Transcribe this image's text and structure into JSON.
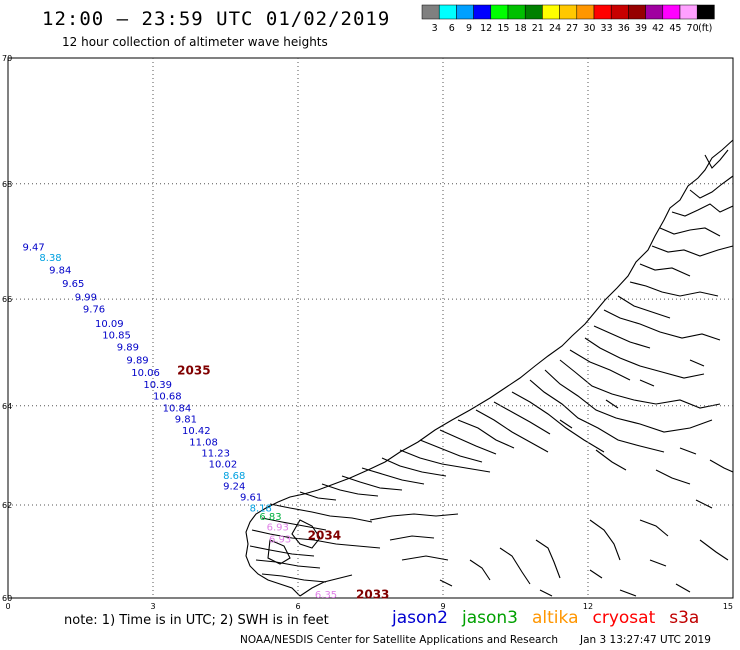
{
  "header": {
    "title": "12:00 – 23:59 UTC 01/02/2019",
    "subtitle": "12 hour collection of altimeter wave heights"
  },
  "legend": {
    "unit_label": "(ft)",
    "bins": [
      {
        "label": "3",
        "color": "#808080"
      },
      {
        "label": "6",
        "color": "#00ffff"
      },
      {
        "label": "9",
        "color": "#00a0ff"
      },
      {
        "label": "12",
        "color": "#0000ff"
      },
      {
        "label": "15",
        "color": "#00ff00"
      },
      {
        "label": "18",
        "color": "#00c000"
      },
      {
        "label": "21",
        "color": "#008000"
      },
      {
        "label": "24",
        "color": "#ffff00"
      },
      {
        "label": "27",
        "color": "#ffc800"
      },
      {
        "label": "30",
        "color": "#ff9600"
      },
      {
        "label": "33",
        "color": "#ff0000"
      },
      {
        "label": "36",
        "color": "#c80000"
      },
      {
        "label": "39",
        "color": "#960000"
      },
      {
        "label": "42",
        "color": "#a000a0"
      },
      {
        "label": "45",
        "color": "#ff00ff"
      },
      {
        "label": "70",
        "color": "#ffa0ff"
      },
      {
        "label": "",
        "color": "#000000"
      }
    ]
  },
  "map": {
    "lat_labels": [
      "70",
      "68",
      "66",
      "64",
      "62",
      "60"
    ],
    "lon_labels": [
      "0",
      "3",
      "6",
      "9",
      "12",
      "15"
    ],
    "lat_range": [
      60,
      70
    ],
    "lon_range": [
      0,
      15
    ],
    "observations": [
      {
        "lat": 66.93,
        "lon": 0.3,
        "value": "9.47",
        "color": "#0000c8"
      },
      {
        "lat": 66.75,
        "lon": 0.65,
        "value": "8.38",
        "color": "#00a0e0"
      },
      {
        "lat": 66.53,
        "lon": 0.85,
        "value": "9.84",
        "color": "#0000c8"
      },
      {
        "lat": 66.29,
        "lon": 1.12,
        "value": "9.65",
        "color": "#0000c8"
      },
      {
        "lat": 66.05,
        "lon": 1.38,
        "value": "9.99",
        "color": "#0000c8"
      },
      {
        "lat": 65.83,
        "lon": 1.55,
        "value": "9.76",
        "color": "#0000c8"
      },
      {
        "lat": 65.57,
        "lon": 1.8,
        "value": "10.09",
        "color": "#0000c8"
      },
      {
        "lat": 65.35,
        "lon": 1.95,
        "value": "10.85",
        "color": "#0000c8"
      },
      {
        "lat": 65.13,
        "lon": 2.25,
        "value": "9.89",
        "color": "#0000c8"
      },
      {
        "lat": 64.89,
        "lon": 2.45,
        "value": "9.89",
        "color": "#0000c8"
      },
      {
        "lat": 64.65,
        "lon": 2.55,
        "value": "10.06",
        "color": "#0000c8"
      },
      {
        "lat": 64.42,
        "lon": 2.8,
        "value": "10.39",
        "color": "#0000c8"
      },
      {
        "lat": 64.2,
        "lon": 3.0,
        "value": "10.68",
        "color": "#0000c8"
      },
      {
        "lat": 63.97,
        "lon": 3.2,
        "value": "10.84",
        "color": "#0000c8"
      },
      {
        "lat": 63.75,
        "lon": 3.45,
        "value": "9.81",
        "color": "#0000c8"
      },
      {
        "lat": 63.52,
        "lon": 3.6,
        "value": "10.42",
        "color": "#0000c8"
      },
      {
        "lat": 63.3,
        "lon": 3.75,
        "value": "11.08",
        "color": "#0000c8"
      },
      {
        "lat": 63.08,
        "lon": 4.0,
        "value": "11.23",
        "color": "#0000c8"
      },
      {
        "lat": 62.85,
        "lon": 4.15,
        "value": "10.02",
        "color": "#0000c8"
      },
      {
        "lat": 62.62,
        "lon": 4.45,
        "value": "8.68",
        "color": "#00a0e0"
      },
      {
        "lat": 62.4,
        "lon": 4.45,
        "value": "9.24",
        "color": "#0000c8"
      },
      {
        "lat": 62.18,
        "lon": 4.8,
        "value": "9.61",
        "color": "#0000c8"
      },
      {
        "lat": 61.95,
        "lon": 5.0,
        "value": "8.18",
        "color": "#00a0e0"
      },
      {
        "lat": 61.77,
        "lon": 5.2,
        "value": "6.83",
        "color": "#00b040"
      },
      {
        "lat": 61.55,
        "lon": 5.35,
        "value": "6.93",
        "color": "#e080e8"
      },
      {
        "lat": 61.3,
        "lon": 5.4,
        "value": "6.93",
        "color": "#e080e8"
      },
      {
        "lat": 60.09,
        "lon": 6.35,
        "value": "6.35",
        "color": "#e080e8"
      }
    ],
    "pass_times": [
      {
        "lat": 64.7,
        "lon": 3.5,
        "value": "2035",
        "color": "#800000"
      },
      {
        "lat": 61.38,
        "lon": 6.2,
        "value": "2034",
        "color": "#800000"
      },
      {
        "lat": 60.1,
        "lon": 7.2,
        "value": "2033",
        "color": "#800000"
      }
    ]
  },
  "footer": {
    "note": "note:  1) Time is in UTC;  2) SWH is in feet",
    "satellites": [
      {
        "name": "jason2",
        "color": "#0000d0"
      },
      {
        "name": "jason3",
        "color": "#00a000"
      },
      {
        "name": "altika",
        "color": "#ff9600"
      },
      {
        "name": "cryosat",
        "color": "#ff0000"
      },
      {
        "name": "s3a",
        "color": "#c00000"
      }
    ],
    "credit": "NOAA/NESDIS Center for Satellite Applications and Research",
    "timestamp": "Jan  3 13:27:47 UTC 2019"
  }
}
